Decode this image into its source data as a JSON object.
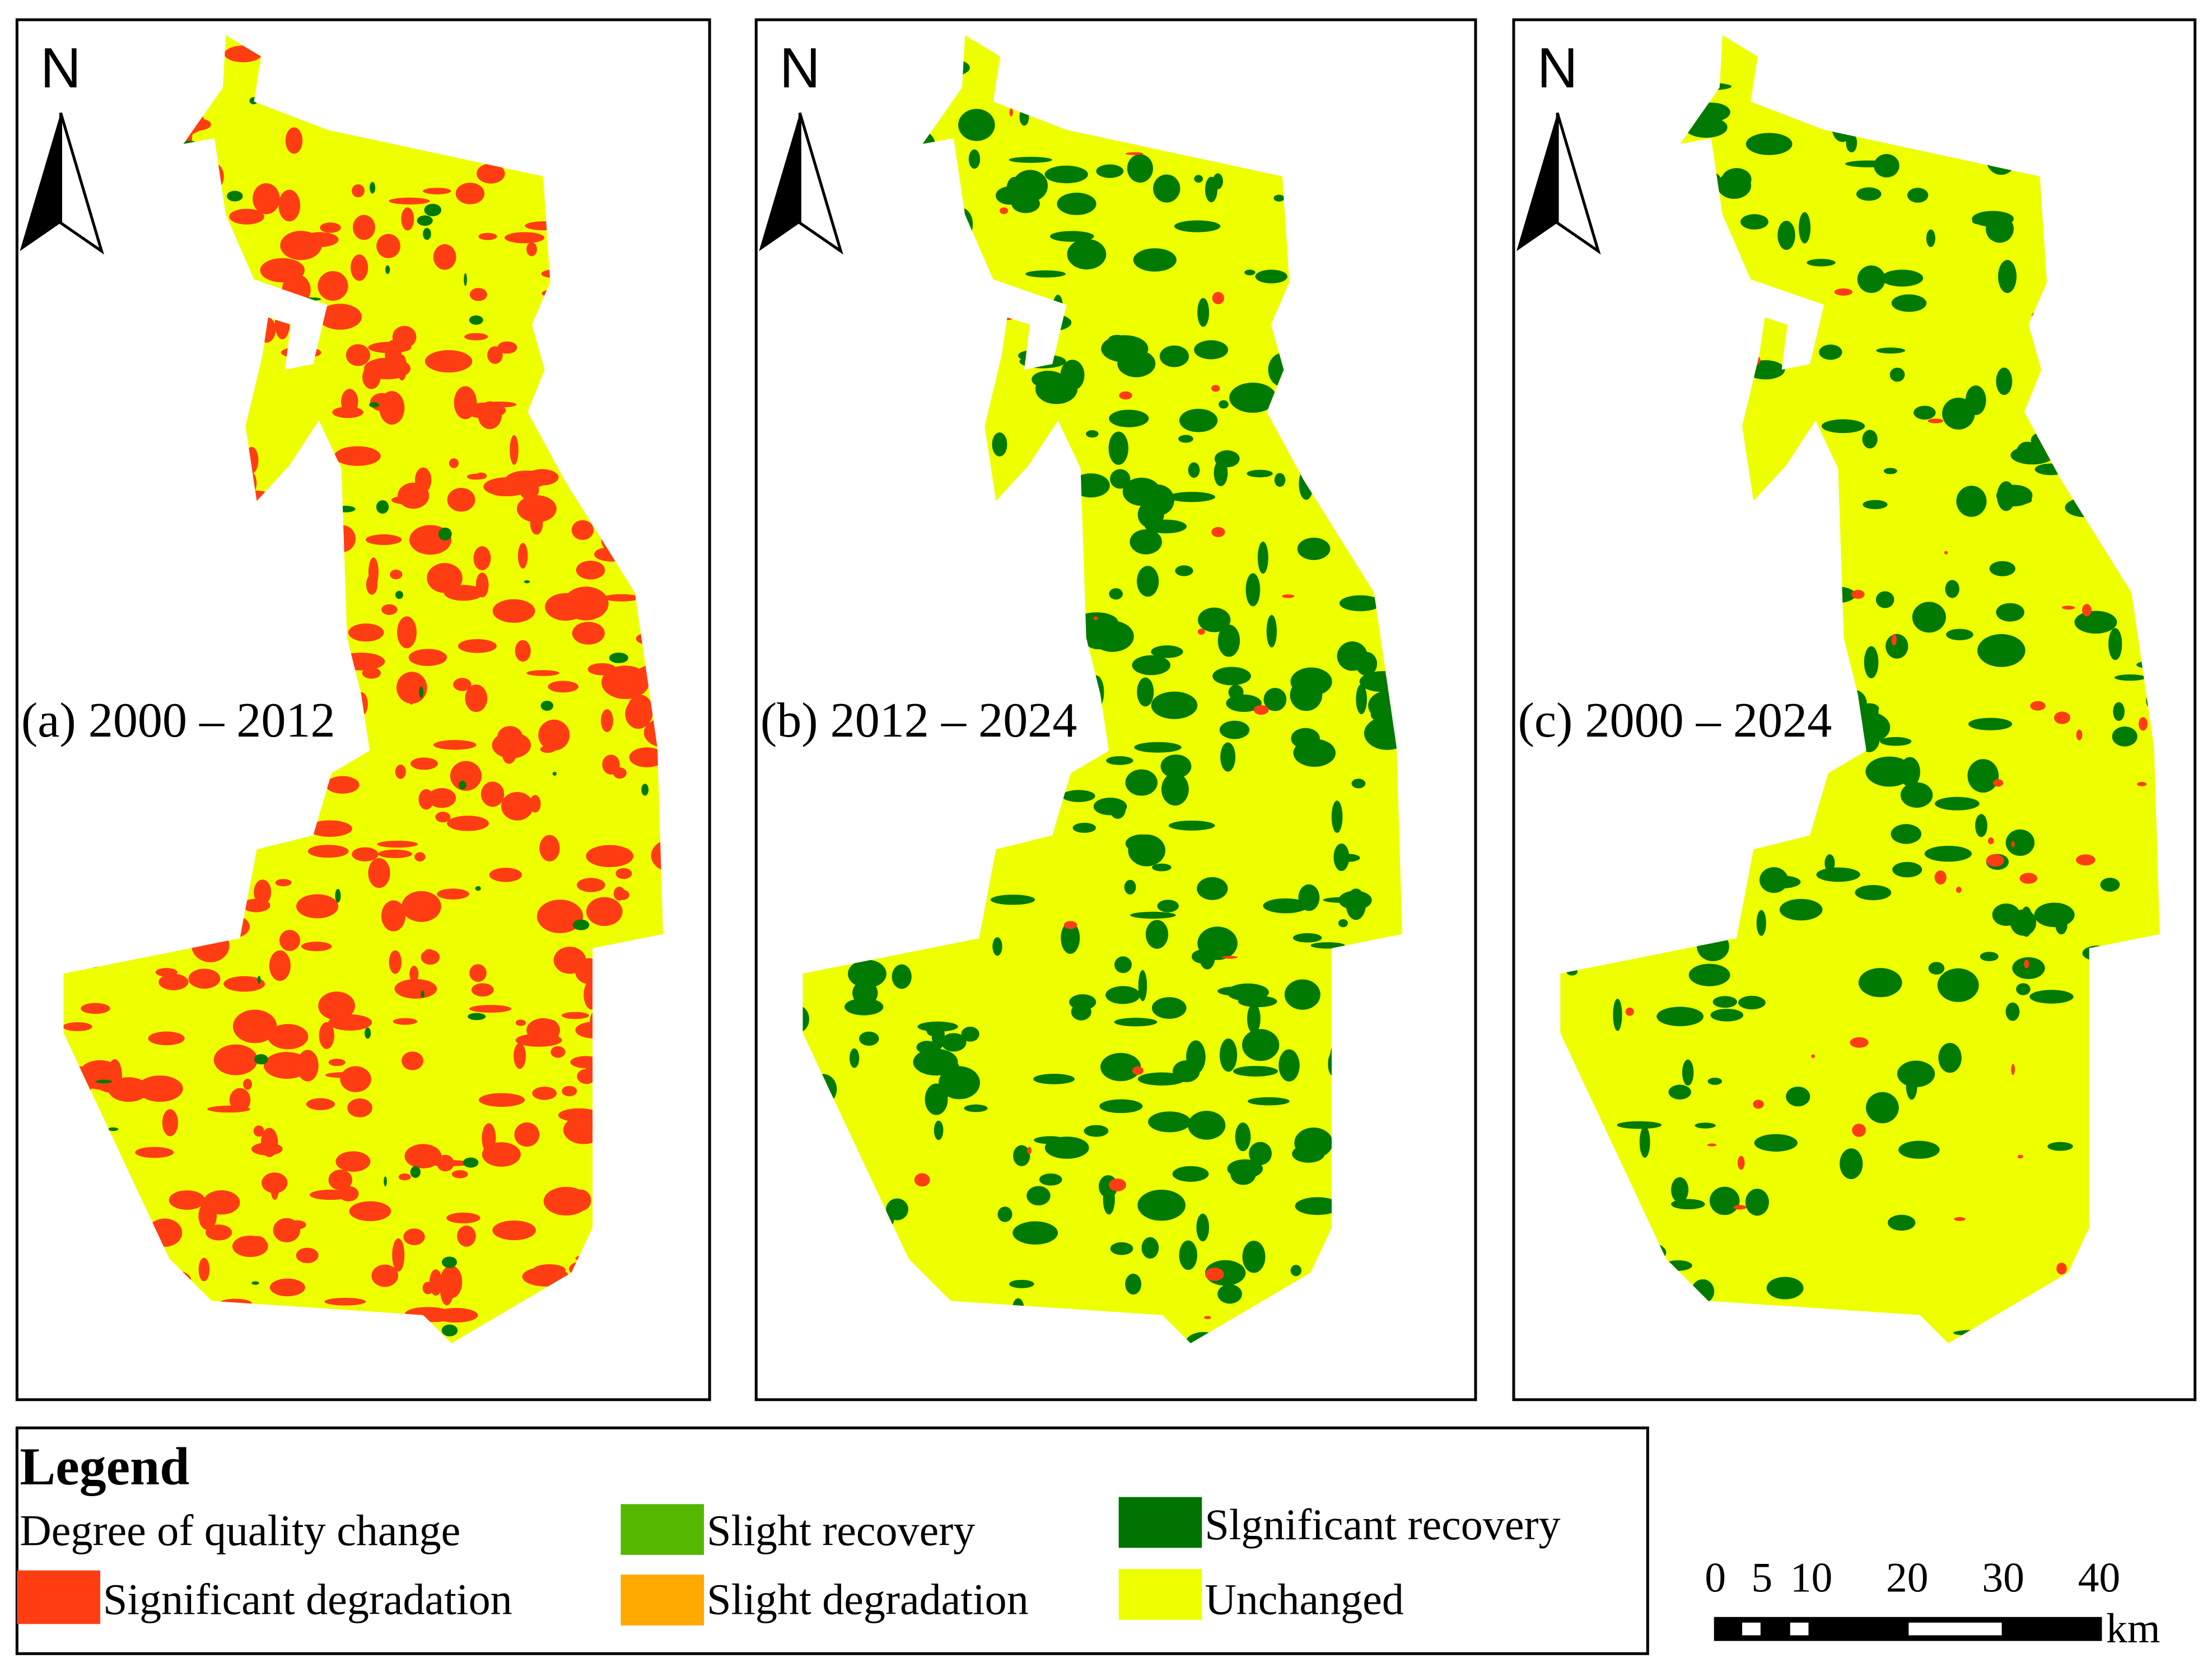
{
  "panels": [
    {
      "label": "(a) 2000 – 2012",
      "north": "N",
      "mix": {
        "base": "#eeff00",
        "major": "#ff3d12",
        "majorShare": 0.55,
        "minor": "#007a00",
        "minorShare": 0.06
      }
    },
    {
      "label": "(b) 2012 – 2024",
      "north": "N",
      "mix": {
        "base": "#eeff00",
        "major": "#007a00",
        "majorShare": 0.45,
        "minor": "#ff3d12",
        "minorShare": 0.005
      }
    },
    {
      "label": "(c) 2000 – 2024",
      "north": "N",
      "mix": {
        "base": "#eeff00",
        "major": "#007a00",
        "majorShare": 0.25,
        "minor": "#ff3d12",
        "minorShare": 0.05
      }
    }
  ],
  "legend": {
    "title": "Legend",
    "subtitle": "Degree of quality change",
    "items": [
      {
        "label": "Slight recovery",
        "color": "#55b800"
      },
      {
        "label": "Slgnificant recovery",
        "color": "#007200"
      },
      {
        "label": "Significant degradation",
        "color": "#ff3d12"
      },
      {
        "label": "Slight degradation",
        "color": "#ffaa00"
      },
      {
        "label": "Unchanged",
        "color": "#eeff00"
      }
    ]
  },
  "scale_bar": {
    "ticks": [
      "0",
      "5",
      "10",
      "20",
      "30",
      "40"
    ],
    "unit": "km"
  }
}
